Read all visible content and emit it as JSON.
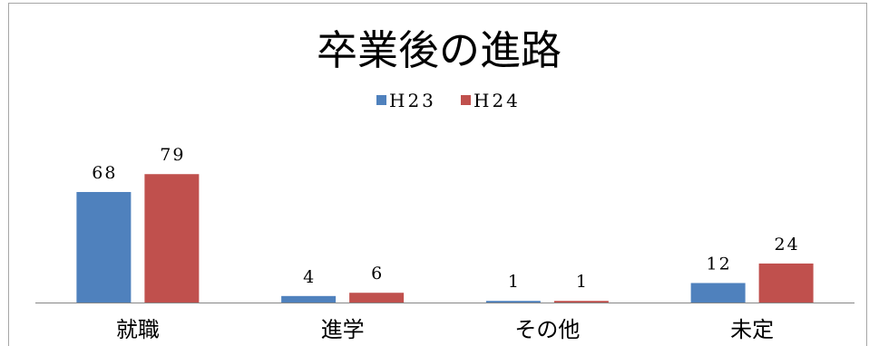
{
  "chart_data": {
    "type": "bar",
    "title": "卒業後の進路",
    "categories": [
      "就職",
      "進学",
      "その他",
      "未定"
    ],
    "series": [
      {
        "name": "H23",
        "values": [
          68,
          4,
          1,
          12
        ],
        "color": "#4F81BD"
      },
      {
        "name": "H24",
        "values": [
          79,
          6,
          1,
          24
        ],
        "color": "#C0504D"
      }
    ],
    "ylim": [
      0,
      90
    ],
    "grid": false,
    "legend": "top-center",
    "data_labels": true
  },
  "colors": {
    "axis": "#868686",
    "border": "#A6A6A6"
  }
}
